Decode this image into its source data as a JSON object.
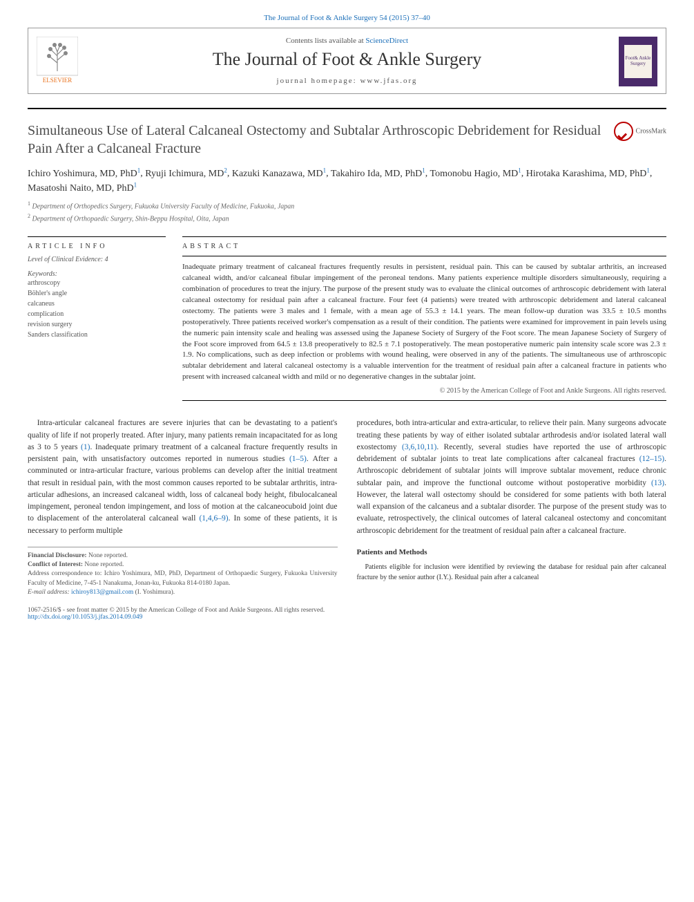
{
  "journal_ref": "The Journal of Foot & Ankle Surgery 54 (2015) 37–40",
  "header": {
    "contents_prefix": "Contents lists available at ",
    "contents_link": "ScienceDirect",
    "journal_name": "The Journal of Foot & Ankle Surgery",
    "homepage_label": "journal homepage: www.jfas.org",
    "cover_text": "Foot& Ankle Surgery"
  },
  "title": "Simultaneous Use of Lateral Calcaneal Ostectomy and Subtalar Arthroscopic Debridement for Residual Pain After a Calcaneal Fracture",
  "crossmark_label": "CrossMark",
  "authors": [
    {
      "name": "Ichiro Yoshimura, MD, PhD",
      "aff": "1"
    },
    {
      "name": "Ryuji Ichimura, MD",
      "aff": "2"
    },
    {
      "name": "Kazuki Kanazawa, MD",
      "aff": "1"
    },
    {
      "name": "Takahiro Ida, MD, PhD",
      "aff": "1"
    },
    {
      "name": "Tomonobu Hagio, MD",
      "aff": "1"
    },
    {
      "name": "Hirotaka Karashima, MD, PhD",
      "aff": "1"
    },
    {
      "name": "Masatoshi Naito, MD, PhD",
      "aff": "1"
    }
  ],
  "affiliations": [
    {
      "num": "1",
      "text": "Department of Orthopedics Surgery, Fukuoka University Faculty of Medicine, Fukuoka, Japan"
    },
    {
      "num": "2",
      "text": "Department of Orthopaedic Surgery, Shin-Beppu Hospital, Oita, Japan"
    }
  ],
  "article_info": {
    "heading": "ARTICLE INFO",
    "evidence": "Level of Clinical Evidence: 4",
    "keywords_label": "Keywords:",
    "keywords": [
      "arthroscopy",
      "Böhler's angle",
      "calcaneus",
      "complication",
      "revision surgery",
      "Sanders classification"
    ]
  },
  "abstract": {
    "heading": "ABSTRACT",
    "text": "Inadequate primary treatment of calcaneal fractures frequently results in persistent, residual pain. This can be caused by subtalar arthritis, an increased calcaneal width, and/or calcaneal fibular impingement of the peroneal tendons. Many patients experience multiple disorders simultaneously, requiring a combination of procedures to treat the injury. The purpose of the present study was to evaluate the clinical outcomes of arthroscopic debridement with lateral calcaneal ostectomy for residual pain after a calcaneal fracture. Four feet (4 patients) were treated with arthroscopic debridement and lateral calcaneal ostectomy. The patients were 3 males and 1 female, with a mean age of 55.3 ± 14.1 years. The mean follow-up duration was 33.5 ± 10.5 months postoperatively. Three patients received worker's compensation as a result of their condition. The patients were examined for improvement in pain levels using the numeric pain intensity scale and healing was assessed using the Japanese Society of Surgery of the Foot score. The mean Japanese Society of Surgery of the Foot score improved from 64.5 ± 13.8 preoperatively to 82.5 ± 7.1 postoperatively. The mean postoperative numeric pain intensity scale score was 2.3 ± 1.9. No complications, such as deep infection or problems with wound healing, were observed in any of the patients. The simultaneous use of arthroscopic subtalar debridement and lateral calcaneal ostectomy is a valuable intervention for the treatment of residual pain after a calcaneal fracture in patients who present with increased calcaneal width and mild or no degenerative changes in the subtalar joint.",
    "copyright": "© 2015 by the American College of Foot and Ankle Surgeons. All rights reserved."
  },
  "body": {
    "p1_a": "Intra-articular calcaneal fractures are severe injuries that can be devastating to a patient's quality of life if not properly treated. After injury, many patients remain incapacitated for as long as 3 to 5 years ",
    "p1_ref1": "(1)",
    "p1_b": ". Inadequate primary treatment of a calcaneal fracture frequently results in persistent pain, with unsatisfactory outcomes reported in numerous studies ",
    "p1_ref2": "(1–5)",
    "p1_c": ". After a comminuted or intra-articular fracture, various problems can develop after the initial treatment that result in residual pain, with the most common causes reported to be subtalar arthritis, intra-articular adhesions, an increased calcaneal width, loss of calcaneal body height, fibulocalcaneal impingement, peroneal tendon impingement, and loss of motion at the calcaneocuboid joint due to displacement of the anterolateral calcaneal wall ",
    "p1_ref3": "(1,4,6–9)",
    "p1_d": ". In some of these patients, it is necessary to perform multiple",
    "p2_a": "procedures, both intra-articular and extra-articular, to relieve their pain. Many surgeons advocate treating these patients by way of either isolated subtalar arthrodesis and/or isolated lateral wall exostectomy ",
    "p2_ref1": "(3,6,10,11)",
    "p2_b": ". Recently, several studies have reported the use of arthroscopic debridement of subtalar joints to treat late complications after calcaneal fractures ",
    "p2_ref2": "(12–15)",
    "p2_c": ". Arthroscopic debridement of subtalar joints will improve subtalar movement, reduce chronic subtalar pain, and improve the functional outcome without postoperative morbidity ",
    "p2_ref3": "(13)",
    "p2_d": ". However, the lateral wall ostectomy should be considered for some patients with both lateral wall expansion of the calcaneus and a subtalar disorder. The purpose of the present study was to evaluate, retrospectively, the clinical outcomes of lateral calcaneal ostectomy and concomitant arthroscopic debridement for the treatment of residual pain after a calcaneal fracture.",
    "methods_heading": "Patients and Methods",
    "methods_p": "Patients eligible for inclusion were identified by reviewing the database for residual pain after calcaneal fracture by the senior author (I.Y.). Residual pain after a calcaneal"
  },
  "footnotes": {
    "fd_label": "Financial Disclosure:",
    "fd_text": " None reported.",
    "coi_label": "Conflict of Interest:",
    "coi_text": " None reported.",
    "corr": "Address correspondence to: Ichiro Yoshimura, MD, PhD, Department of Orthopaedic Surgery, Fukuoka University Faculty of Medicine, 7-45-1 Nanakuma, Jonan-ku, Fukuoka 814-0180 Japan.",
    "email_label": "E-mail address: ",
    "email": "ichiroy813@gmail.com",
    "email_suffix": " (I. Yoshimura)."
  },
  "footer": {
    "line1": "1067-2516/$ - see front matter © 2015 by the American College of Foot and Ankle Surgeons. All rights reserved.",
    "doi": "http://dx.doi.org/10.1053/j.jfas.2014.09.049"
  },
  "colors": {
    "link": "#1a6eb8",
    "elsevier_orange": "#e9711c",
    "cover_purple": "#4a2a6a",
    "crossmark_red": "#b00020"
  }
}
